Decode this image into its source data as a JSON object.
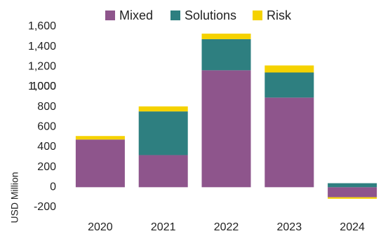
{
  "chart_data": {
    "type": "stacked_bar",
    "categories": [
      "2020",
      "2021",
      "2022",
      "2023",
      "2024"
    ],
    "series": [
      {
        "name": "Mixed",
        "color": "#8e558c",
        "values": [
          475,
          320,
          1165,
          893,
          -100
        ]
      },
      {
        "name": "Solutions",
        "color": "#2e7f80",
        "values": [
          0,
          435,
          310,
          250,
          40
        ]
      },
      {
        "name": "Risk",
        "color": "#f5d200",
        "values": [
          35,
          50,
          55,
          70,
          -15
        ]
      }
    ],
    "ylabel": "USD Million",
    "ylim": [
      -200,
      1600
    ],
    "yticks": [
      {
        "value": -200,
        "label": "-200"
      },
      0,
      200,
      400,
      600,
      800,
      1000,
      {
        "value": 1000,
        "label": "1,000"
      },
      {
        "value": 1200,
        "label": "1,200"
      },
      {
        "value": 1400,
        "label": "1,400"
      },
      {
        "value": 1600,
        "label": "1,600"
      }
    ],
    "grid": false,
    "legend": "top"
  }
}
